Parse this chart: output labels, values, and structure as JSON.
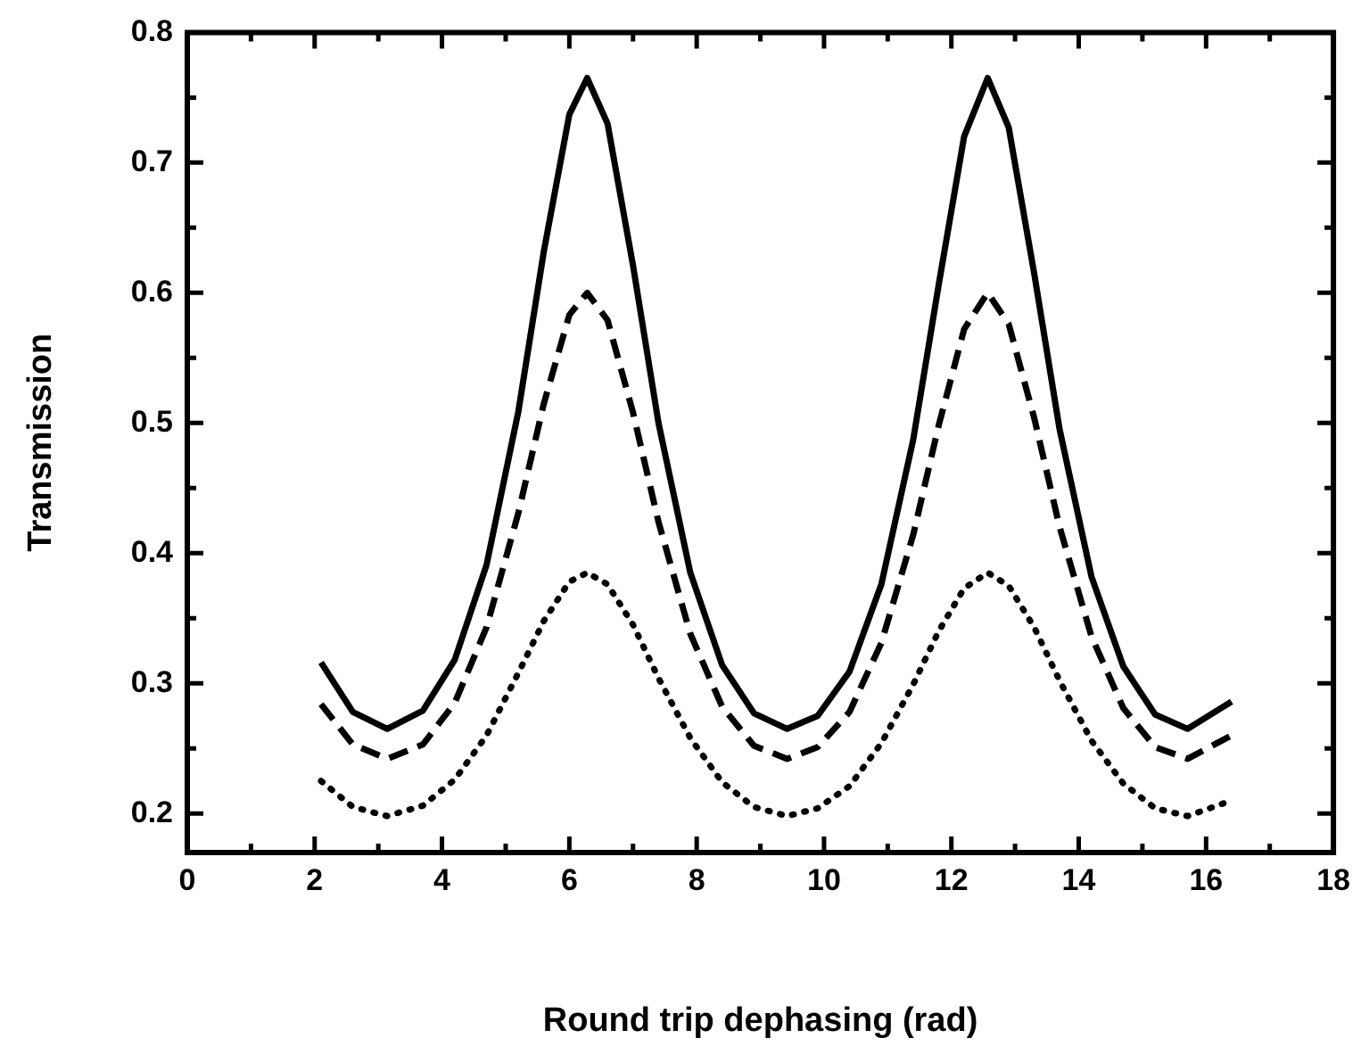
{
  "chart_data": {
    "type": "line",
    "xlabel": "Round trip dephasing (rad)",
    "ylabel": "Transmission",
    "x": [
      2.1,
      2.6,
      3.14,
      3.7,
      4.2,
      4.7,
      5.2,
      5.6,
      6.0,
      6.28,
      6.6,
      7.0,
      7.4,
      7.9,
      8.4,
      8.9,
      9.42,
      9.9,
      10.4,
      10.9,
      11.4,
      11.8,
      12.2,
      12.57,
      12.9,
      13.3,
      13.7,
      14.2,
      14.7,
      15.2,
      15.71,
      16.4
    ],
    "series": [
      {
        "color": "#000000",
        "line_style": "solid",
        "values": [
          0.316,
          0.278,
          0.265,
          0.279,
          0.318,
          0.391,
          0.509,
          0.632,
          0.737,
          0.765,
          0.73,
          0.621,
          0.5,
          0.385,
          0.314,
          0.277,
          0.265,
          0.275,
          0.309,
          0.376,
          0.487,
          0.606,
          0.72,
          0.765,
          0.727,
          0.615,
          0.495,
          0.382,
          0.313,
          0.276,
          0.265,
          0.286
        ]
      },
      {
        "color": "#000000",
        "line_style": "dashed",
        "values": [
          0.284,
          0.253,
          0.242,
          0.253,
          0.285,
          0.343,
          0.431,
          0.515,
          0.583,
          0.6,
          0.579,
          0.508,
          0.424,
          0.338,
          0.282,
          0.252,
          0.242,
          0.251,
          0.278,
          0.331,
          0.414,
          0.498,
          0.572,
          0.6,
          0.576,
          0.504,
          0.42,
          0.336,
          0.281,
          0.251,
          0.242,
          0.26
        ]
      },
      {
        "color": "#000000",
        "line_style": "dotted",
        "values": [
          0.225,
          0.205,
          0.198,
          0.206,
          0.226,
          0.26,
          0.308,
          0.348,
          0.378,
          0.385,
          0.376,
          0.345,
          0.304,
          0.258,
          0.224,
          0.205,
          0.198,
          0.204,
          0.221,
          0.254,
          0.299,
          0.34,
          0.373,
          0.385,
          0.375,
          0.343,
          0.302,
          0.256,
          0.223,
          0.204,
          0.198,
          0.21
        ]
      }
    ],
    "xlim": [
      0,
      18
    ],
    "xticks": [
      0,
      2,
      4,
      6,
      8,
      10,
      12,
      14,
      16,
      18
    ],
    "ylim": [
      0.17,
      0.8
    ],
    "yticks": [
      0.2,
      0.3,
      0.4,
      0.5,
      0.6,
      0.7,
      0.8
    ],
    "grid": false,
    "legend": false,
    "marker": "none"
  }
}
